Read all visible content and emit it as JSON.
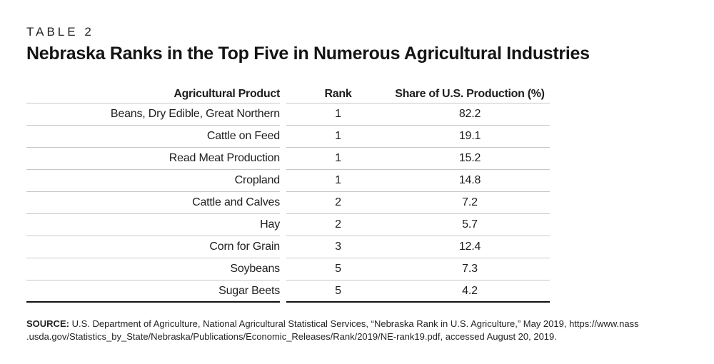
{
  "table_label": "TABLE 2",
  "title": "Nebraska Ranks in the Top Five in Numerous Agricultural Industries",
  "table": {
    "columns": [
      "Agricultural Product",
      "Rank",
      "Share of U.S. Production (%)"
    ],
    "rows": [
      {
        "product": "Beans, Dry Edible, Great Northern",
        "rank": "1",
        "share": "82.2"
      },
      {
        "product": "Cattle on Feed",
        "rank": "1",
        "share": "19.1"
      },
      {
        "product": "Read Meat Production",
        "rank": "1",
        "share": "15.2"
      },
      {
        "product": "Cropland",
        "rank": "1",
        "share": "14.8"
      },
      {
        "product": "Cattle and Calves",
        "rank": "2",
        "share": "7.2"
      },
      {
        "product": "Hay",
        "rank": "2",
        "share": "5.7"
      },
      {
        "product": "Corn for Grain",
        "rank": "3",
        "share": "12.4"
      },
      {
        "product": "Soybeans",
        "rank": "5",
        "share": "7.3"
      },
      {
        "product": "Sugar Beets",
        "rank": "5",
        "share": "4.2"
      }
    ]
  },
  "source": {
    "label": "SOURCE:",
    "line1": " U.S. Department of Agriculture, National Agricultural Statistical Services, “Nebraska Rank in U.S. Agriculture,” May 2019, https://www.nass",
    "line2": ".usda.gov/Statistics_by_State/Nebraska/Publications/Economic_Releases/Rank/2019/NE-rank19.pdf, accessed August 20, 2019."
  },
  "colors": {
    "text": "#1e1e1e",
    "row_divider": "#c7c7c7",
    "bottom_rule": "#111111",
    "background": "#ffffff"
  },
  "chart_data": {
    "type": "table",
    "title": "Nebraska Ranks in the Top Five in Numerous Agricultural Industries",
    "columns": [
      "Agricultural Product",
      "Rank",
      "Share of U.S. Production (%)"
    ],
    "rows": [
      [
        "Beans, Dry Edible, Great Northern",
        1,
        82.2
      ],
      [
        "Cattle on Feed",
        1,
        19.1
      ],
      [
        "Read Meat Production",
        1,
        15.2
      ],
      [
        "Cropland",
        1,
        14.8
      ],
      [
        "Cattle and Calves",
        2,
        7.2
      ],
      [
        "Hay",
        2,
        5.7
      ],
      [
        "Corn for Grain",
        3,
        12.4
      ],
      [
        "Soybeans",
        5,
        7.3
      ],
      [
        "Sugar Beets",
        5,
        4.2
      ]
    ]
  }
}
